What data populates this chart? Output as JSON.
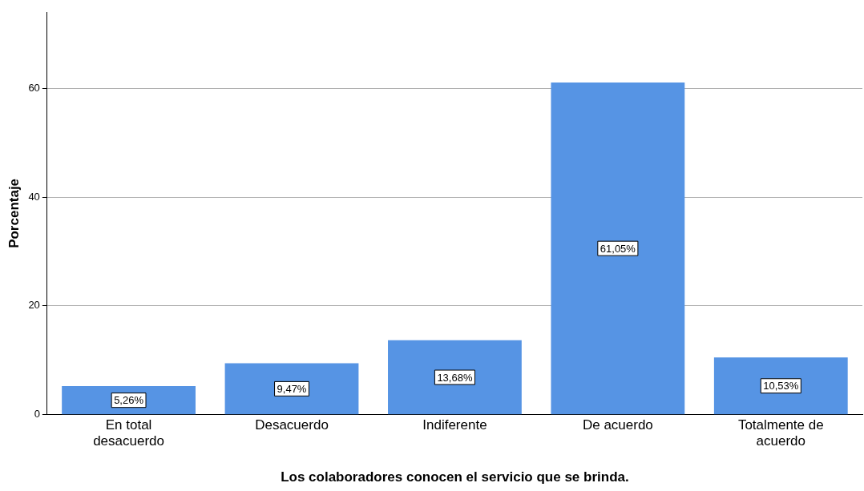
{
  "chart_data": {
    "type": "bar",
    "xlabel": "Los colaboradores conocen el servicio que se brinda.",
    "ylabel": "Porcentaje",
    "categories": [
      "En total desacuerdo",
      "Desacuerdo",
      "Indiferente",
      "De acuerdo",
      "Totalmente de acuerdo"
    ],
    "values": [
      5.26,
      9.47,
      13.68,
      61.05,
      10.53
    ],
    "value_labels": [
      "5,26%",
      "9,47%",
      "13,68%",
      "61,05%",
      "10,53%"
    ],
    "color": "#5694e4",
    "ylim": [
      0,
      74
    ],
    "yticks": [
      0,
      20,
      40,
      60
    ],
    "grid": "y",
    "legend": false
  }
}
